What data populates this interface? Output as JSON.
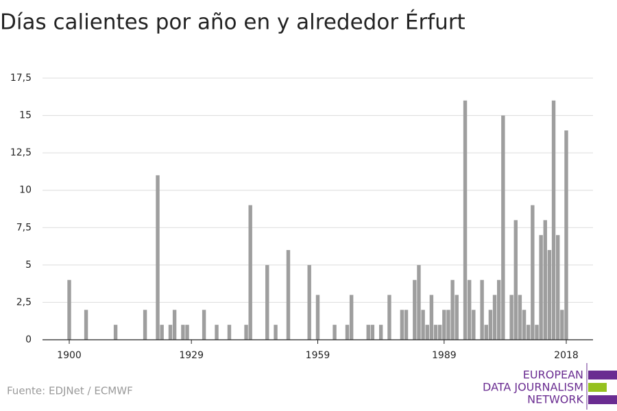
{
  "chart_data": {
    "type": "bar",
    "title": "Días calientes por año en y alrededor Érfurt",
    "source": "Fuente: EDJNet / ECMWF",
    "logo": [
      "EUROPEAN",
      "DATA JOURNALISM",
      "NETWORK"
    ],
    "color": "#9e9e9e",
    "x": [
      1900,
      1904,
      1911,
      1918,
      1921,
      1922,
      1924,
      1925,
      1927,
      1928,
      1932,
      1935,
      1938,
      1942,
      1943,
      1947,
      1949,
      1952,
      1957,
      1959,
      1963,
      1966,
      1967,
      1971,
      1972,
      1974,
      1976,
      1979,
      1980,
      1982,
      1983,
      1984,
      1985,
      1986,
      1987,
      1988,
      1989,
      1990,
      1991,
      1992,
      1994,
      1995,
      1996,
      1998,
      1999,
      2000,
      2001,
      2002,
      2003,
      2005,
      2006,
      2007,
      2008,
      2009,
      2010,
      2011,
      2012,
      2013,
      2014,
      2015,
      2016,
      2017,
      2018
    ],
    "values": [
      4,
      2,
      1,
      2,
      11,
      1,
      1,
      2,
      1,
      1,
      2,
      1,
      1,
      1,
      9,
      5,
      1,
      6,
      5,
      3,
      1,
      1,
      3,
      1,
      1,
      1,
      3,
      2,
      2,
      4,
      5,
      2,
      1,
      3,
      1,
      1,
      2,
      2,
      4,
      3,
      16,
      4,
      2,
      4,
      1,
      2,
      3,
      4,
      15,
      3,
      8,
      3,
      2,
      1,
      9,
      1,
      7,
      8,
      6,
      16,
      7,
      2,
      14
    ],
    "xlim": [
      1894,
      2025
    ],
    "xticks": [
      1900,
      1929,
      1959,
      1989,
      2018
    ],
    "ylim": [
      0,
      17.5
    ],
    "yticks": [
      0,
      {
        "value": 2.5,
        "label": "2,5"
      },
      5,
      {
        "value": 7.5,
        "label": "7,5"
      },
      10,
      {
        "value": 12.5,
        "label": "12,5"
      },
      15,
      {
        "value": 17.5,
        "label": "17,5"
      }
    ],
    "grid": true
  }
}
